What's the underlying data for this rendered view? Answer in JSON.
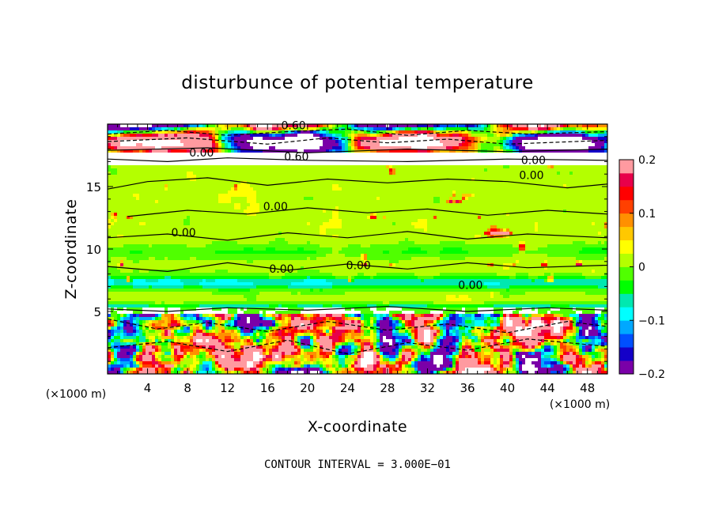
{
  "chart_data": {
    "type": "heatmap",
    "title": "disturbunce of potential temperature",
    "xlabel": "X-coordinate",
    "ylabel": "Z-coordinate",
    "x_unit": "(×1000 m)",
    "x_unit_right": "(×1000 m)",
    "xlim": [
      0,
      50
    ],
    "ylim": [
      0,
      20
    ],
    "x_ticks": [
      4,
      8,
      12,
      16,
      20,
      24,
      28,
      32,
      36,
      40,
      44,
      48
    ],
    "y_ticks": [
      5,
      10,
      15
    ],
    "colorbar": {
      "range": [
        -0.2,
        0.2
      ],
      "ticks": [
        {
          "value": 0.2,
          "label": "0.2"
        },
        {
          "value": 0.1,
          "label": "0.1"
        },
        {
          "value": 0,
          "label": "0"
        },
        {
          "value": -0.1,
          "label": "−0.1"
        },
        {
          "value": -0.2,
          "label": "−0.2"
        }
      ],
      "colors": [
        "#7a00a8",
        "#1400c8",
        "#0050ff",
        "#00a8ff",
        "#00ffff",
        "#00e8b0",
        "#00ff00",
        "#50ff00",
        "#b4ff00",
        "#ffff00",
        "#ffc800",
        "#ff9000",
        "#ff4000",
        "#ff0000",
        "#e8004a",
        "#ff9aa0"
      ]
    },
    "contour_labels": [
      {
        "text": "0.60",
        "x": 18.6,
        "y": 19.6
      },
      {
        "text": "0.60",
        "x": 18.9,
        "y": 17.1
      },
      {
        "text": "0.00",
        "x": 9.4,
        "y": 17.4
      },
      {
        "text": "0.00",
        "x": 42.6,
        "y": 16.8
      },
      {
        "text": "0.00",
        "x": 42.4,
        "y": 15.6
      },
      {
        "text": "0.00",
        "x": 16.8,
        "y": 13.1
      },
      {
        "text": "0.00",
        "x": 7.6,
        "y": 11.0
      },
      {
        "text": "0.00",
        "x": 25.1,
        "y": 8.4
      },
      {
        "text": "0.00",
        "x": 17.4,
        "y": 8.1
      },
      {
        "text": "0.00",
        "x": 36.3,
        "y": 6.8
      }
    ],
    "contour_interval": "CONTOUR INTERVAL = 3.000E−01"
  }
}
